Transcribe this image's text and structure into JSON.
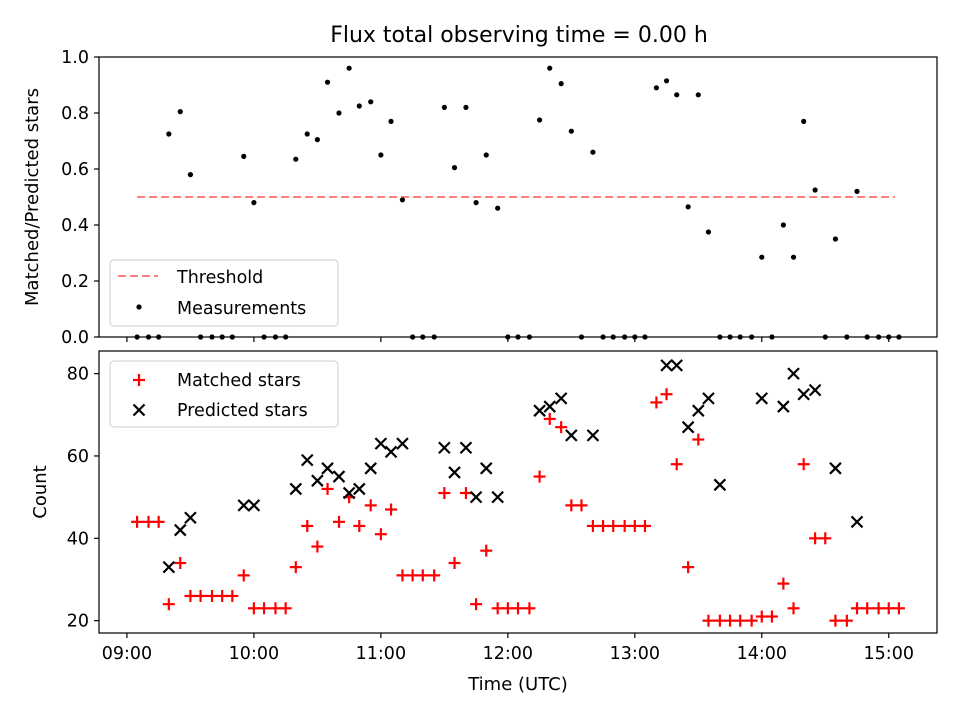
{
  "title": "Flux total observing time = 0.00 h",
  "chart_data": [
    {
      "type": "scatter",
      "panel": "top",
      "ylabel": "Matched/Predicted stars",
      "xlabel": "",
      "x_unit": "hours UTC",
      "xlim": [
        8.78,
        15.38
      ],
      "ylim": [
        0.0,
        1.0
      ],
      "yticks": [
        "0.0",
        "0.2",
        "0.4",
        "0.6",
        "0.8",
        "1.0"
      ],
      "legend_position": "lower left",
      "threshold": {
        "name": "Threshold",
        "value": 0.5,
        "x_range": [
          9.08,
          15.05
        ],
        "color": "#ff7f7f"
      },
      "series": [
        {
          "name": "Measurements",
          "color": "#000000",
          "x": [
            9.08,
            9.17,
            9.25,
            9.33,
            9.42,
            9.5,
            9.58,
            9.67,
            9.75,
            9.83,
            9.92,
            10.0,
            10.08,
            10.17,
            10.25,
            10.33,
            10.42,
            10.5,
            10.58,
            10.67,
            10.75,
            10.83,
            10.92,
            11.0,
            11.08,
            11.17,
            11.25,
            11.33,
            11.42,
            11.5,
            11.58,
            11.67,
            11.75,
            11.83,
            11.92,
            12.0,
            12.08,
            12.17,
            12.25,
            12.33,
            12.42,
            12.5,
            12.58,
            12.67,
            12.75,
            12.83,
            12.92,
            13.0,
            13.08,
            13.17,
            13.25,
            13.33,
            13.42,
            13.5,
            13.58,
            13.67,
            13.75,
            13.83,
            13.92,
            14.0,
            14.08,
            14.17,
            14.25,
            14.33,
            14.42,
            14.5,
            14.58,
            14.67,
            14.75,
            14.83,
            14.92,
            15.0,
            15.08
          ],
          "y": [
            0.0,
            0.0,
            0.0,
            0.725,
            0.805,
            0.58,
            0.0,
            0.0,
            0.0,
            0.0,
            0.645,
            0.48,
            0.0,
            0.0,
            0.0,
            0.635,
            0.725,
            0.705,
            0.91,
            0.8,
            0.96,
            0.825,
            0.84,
            0.65,
            0.77,
            0.49,
            0.0,
            0.0,
            0.0,
            0.82,
            0.605,
            0.82,
            0.48,
            0.65,
            0.46,
            0.0,
            0.0,
            0.0,
            0.775,
            0.96,
            0.905,
            0.735,
            0.0,
            0.66,
            0.0,
            0.0,
            0.0,
            0.0,
            0.0,
            0.89,
            0.915,
            0.865,
            0.465,
            0.865,
            0.375,
            0.0,
            0.0,
            0.0,
            0.0,
            0.285,
            0.0,
            0.4,
            0.285,
            0.77,
            0.525,
            0.0,
            0.35,
            0.0,
            0.52,
            0.0,
            0.0,
            0.0,
            0.0
          ]
        }
      ]
    },
    {
      "type": "scatter",
      "panel": "bottom",
      "ylabel": "Count",
      "xlabel": "Time (UTC)",
      "x_unit": "hours UTC",
      "xlim": [
        8.78,
        15.38
      ],
      "ylim": [
        17,
        85.5
      ],
      "yticks": [
        "20",
        "40",
        "60",
        "80"
      ],
      "xticks": [
        "09:00",
        "10:00",
        "11:00",
        "12:00",
        "13:00",
        "14:00",
        "15:00"
      ],
      "legend_position": "upper left",
      "series": [
        {
          "name": "Matched stars",
          "marker": "+",
          "color": "#ff0000",
          "x": [
            9.08,
            9.17,
            9.25,
            9.33,
            9.42,
            9.5,
            9.58,
            9.67,
            9.75,
            9.83,
            9.92,
            10.0,
            10.08,
            10.17,
            10.25,
            10.33,
            10.42,
            10.5,
            10.58,
            10.67,
            10.75,
            10.83,
            10.92,
            11.0,
            11.08,
            11.17,
            11.25,
            11.33,
            11.42,
            11.5,
            11.58,
            11.67,
            11.75,
            11.83,
            11.92,
            12.0,
            12.08,
            12.17,
            12.25,
            12.33,
            12.42,
            12.5,
            12.58,
            12.67,
            12.75,
            12.83,
            12.92,
            13.0,
            13.08,
            13.17,
            13.25,
            13.33,
            13.42,
            13.5,
            13.58,
            13.67,
            13.75,
            13.83,
            13.92,
            14.0,
            14.08,
            14.17,
            14.25,
            14.33,
            14.42,
            14.5,
            14.58,
            14.67,
            14.75,
            14.83,
            14.92,
            15.0,
            15.08
          ],
          "y": [
            44,
            44,
            44,
            24,
            34,
            26,
            26,
            26,
            26,
            26,
            31,
            23,
            23,
            23,
            23,
            33,
            43,
            38,
            52,
            44,
            50,
            43,
            48,
            41,
            47,
            31,
            31,
            31,
            31,
            51,
            34,
            51,
            24,
            37,
            23,
            23,
            23,
            23,
            55,
            69,
            67,
            48,
            48,
            43,
            43,
            43,
            43,
            43,
            43,
            73,
            75,
            58,
            33,
            64,
            20,
            20,
            20,
            20,
            20,
            21,
            21,
            29,
            23,
            58,
            40,
            40,
            20,
            20,
            23,
            23,
            23,
            23,
            23
          ]
        },
        {
          "name": "Predicted stars",
          "marker": "x",
          "color": "#000000",
          "x": [
            9.33,
            9.42,
            9.5,
            9.92,
            10.0,
            10.33,
            10.42,
            10.5,
            10.58,
            10.67,
            10.75,
            10.83,
            10.92,
            11.0,
            11.08,
            11.17,
            11.5,
            11.58,
            11.67,
            11.75,
            11.83,
            11.92,
            12.25,
            12.33,
            12.42,
            12.5,
            12.67,
            13.25,
            13.33,
            13.42,
            13.5,
            13.58,
            13.67,
            14.0,
            14.17,
            14.25,
            14.33,
            14.42,
            14.58,
            14.75
          ],
          "y": [
            33,
            42,
            45,
            48,
            48,
            52,
            59,
            54,
            57,
            55,
            51,
            52,
            57,
            63,
            61,
            63,
            62,
            56,
            62,
            50,
            57,
            50,
            71,
            72,
            74,
            65,
            65,
            82,
            82,
            67,
            71,
            74,
            53,
            74,
            72,
            80,
            75,
            76,
            57,
            44
          ]
        }
      ]
    }
  ]
}
